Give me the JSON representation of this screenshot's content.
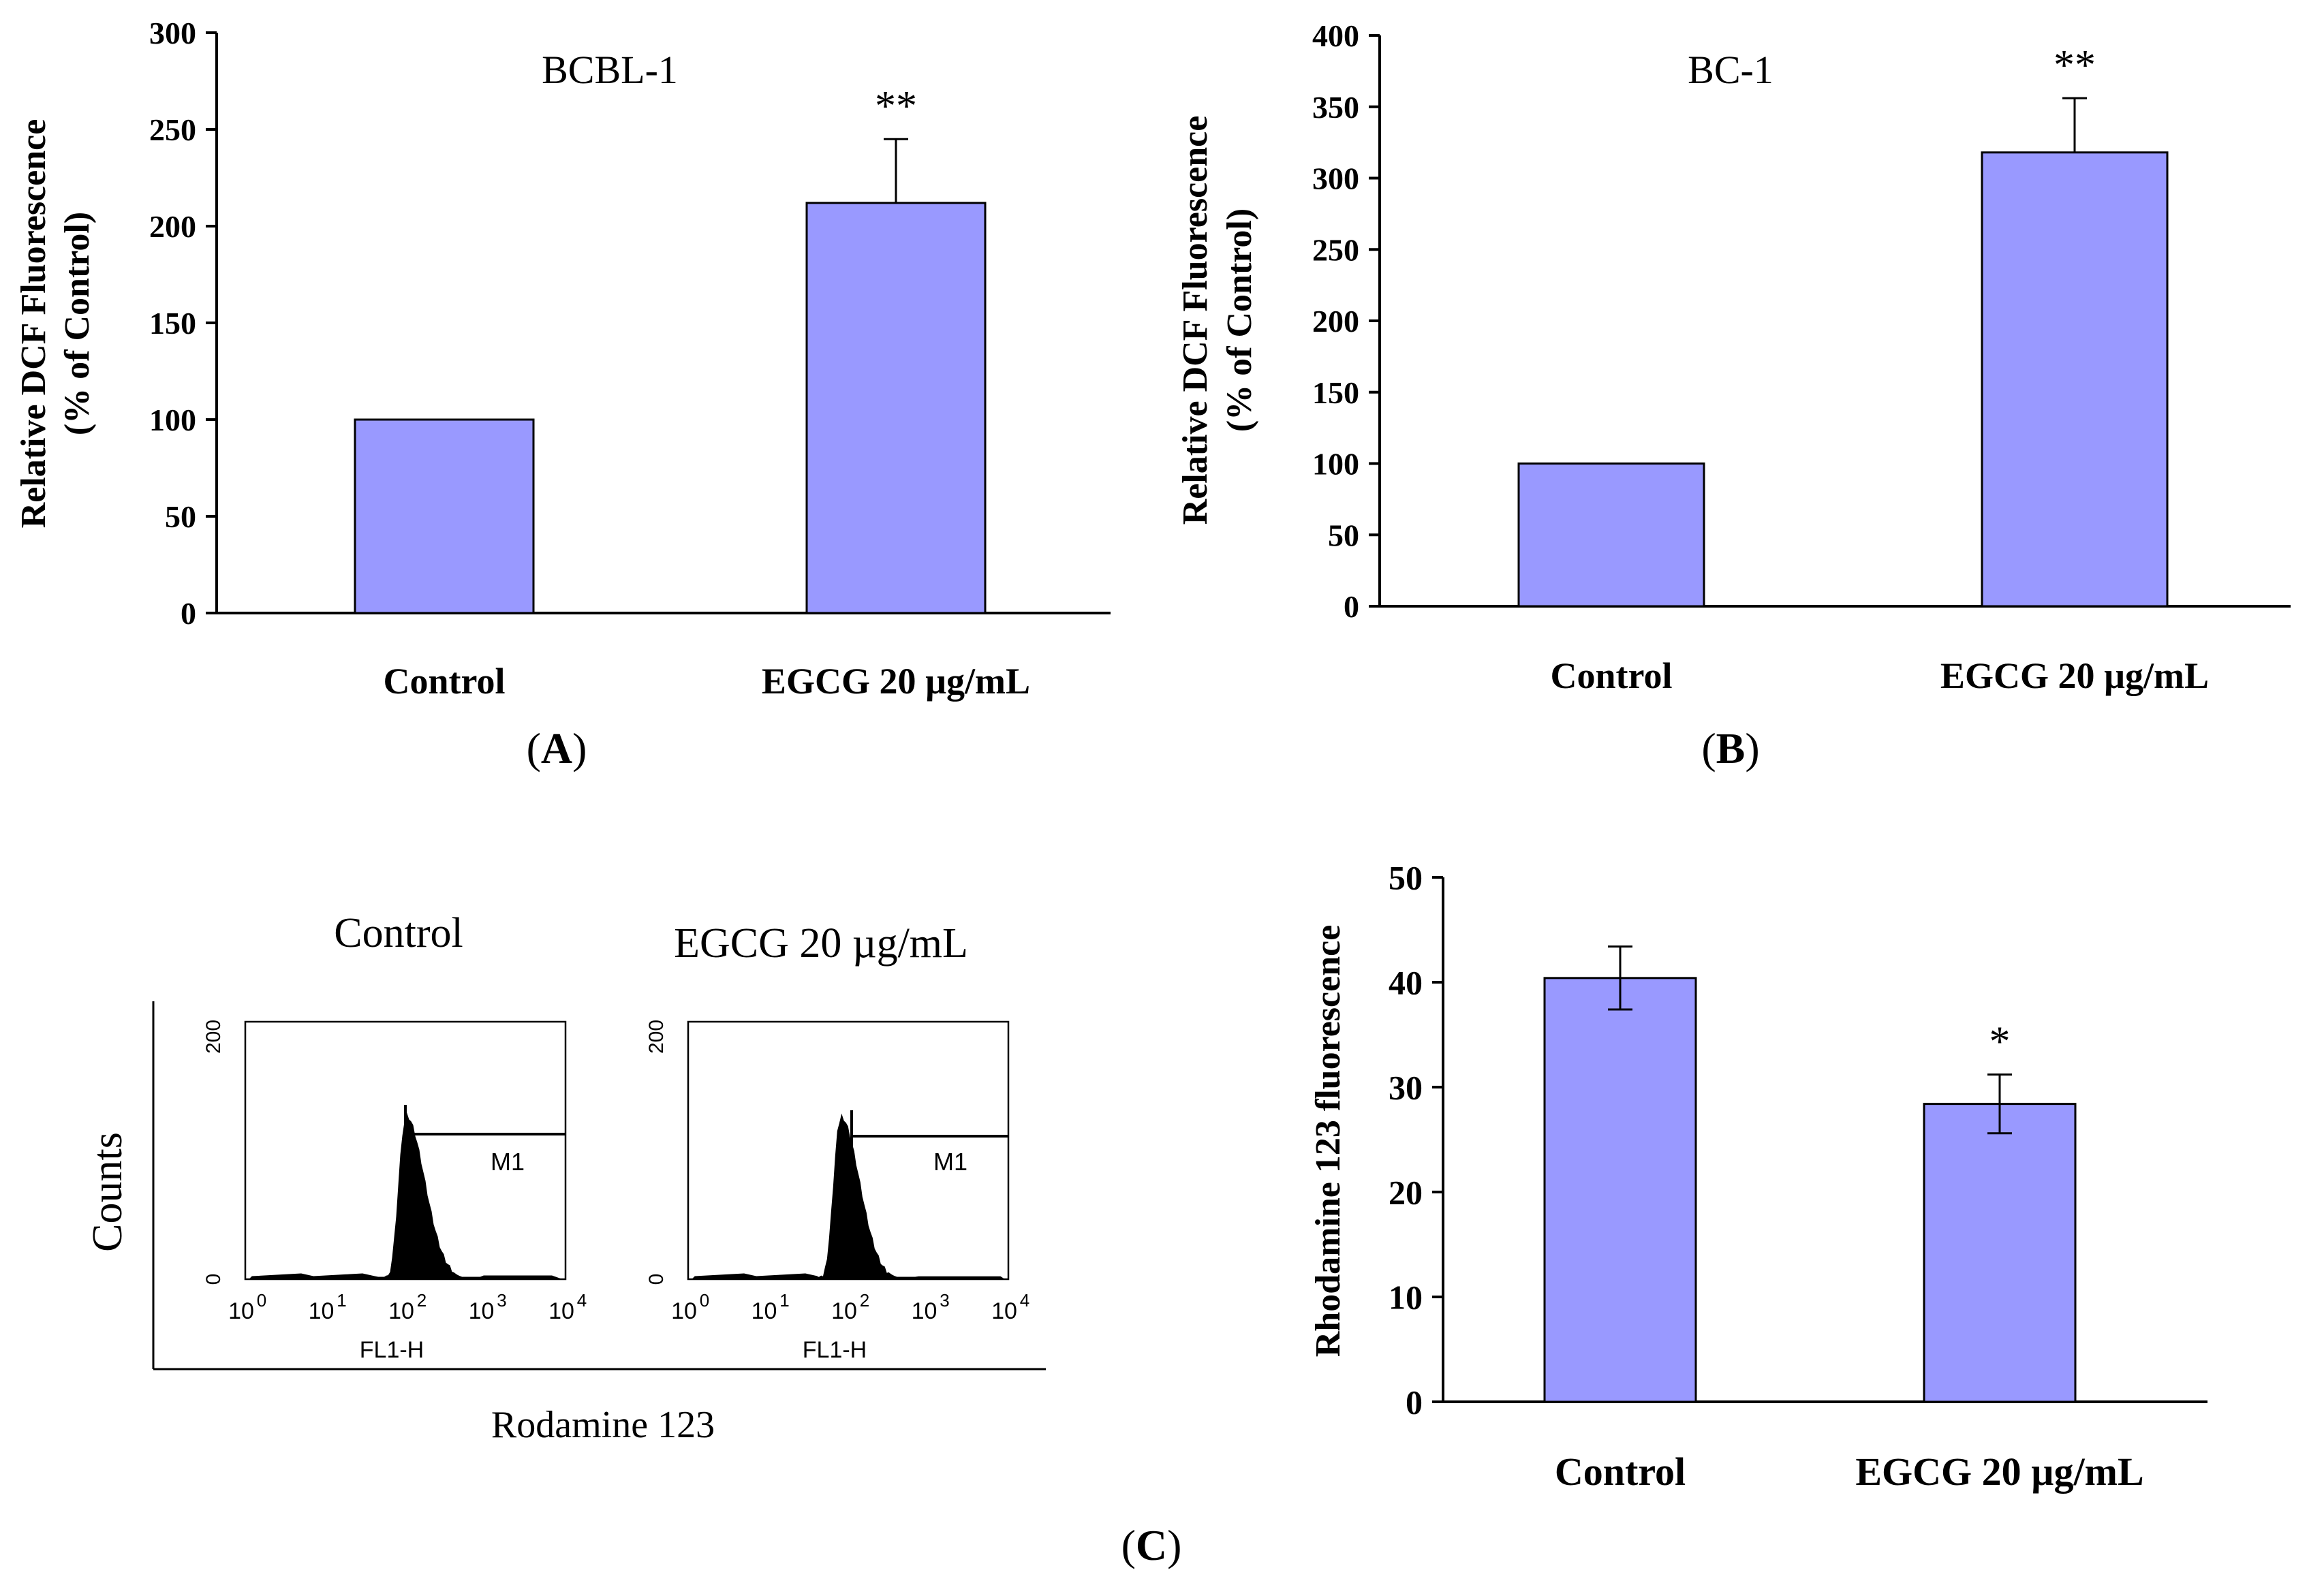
{
  "colors": {
    "bar": "#9999FF",
    "axis": "#000000",
    "text": "#000000",
    "background": "#FFFFFF"
  },
  "panels": {
    "a": {
      "label_open": "(",
      "label": "A",
      "label_close": ")"
    },
    "b": {
      "label_open": "(",
      "label": "B",
      "label_close": ")"
    },
    "c": {
      "label_open": "(",
      "label": "C",
      "label_close": ")"
    }
  },
  "flow": {
    "y_label": "Counts",
    "x_label": "Rodamine 123",
    "histograms": [
      {
        "title": "Control",
        "y_ticks": [
          "0",
          "200"
        ],
        "x_tick_base": "10",
        "x_tick_exps": [
          "0",
          "1",
          "2",
          "3",
          "4"
        ],
        "x_axis_label": "FL1-H",
        "marker_label": "M1",
        "peak_log_fl": 2.0
      },
      {
        "title": "EGCG 20 µg/mL",
        "y_ticks": [
          "0",
          "200"
        ],
        "x_tick_base": "10",
        "x_tick_exps": [
          "0",
          "1",
          "2",
          "3",
          "4"
        ],
        "x_axis_label": "FL1-H",
        "marker_label": "M1",
        "peak_log_fl": 1.9
      }
    ]
  },
  "chart_data": [
    {
      "id": "A",
      "type": "bar",
      "title": "BCBL-1",
      "categories": [
        "Control",
        "EGCG 20 µg/mL"
      ],
      "values": [
        100,
        212
      ],
      "errors": [
        0,
        33
      ],
      "annotations": [
        "",
        "**"
      ],
      "ylabel": [
        "Relative DCF Fluorescence",
        "(% of Control)"
      ],
      "xlabel": "",
      "ylim": [
        0,
        300
      ],
      "yticks": [
        0,
        50,
        100,
        150,
        200,
        250,
        300
      ],
      "grid": false
    },
    {
      "id": "B",
      "type": "bar",
      "title": "BC-1",
      "categories": [
        "Control",
        "EGCG 20 µg/mL"
      ],
      "values": [
        100,
        318
      ],
      "errors": [
        0,
        38
      ],
      "annotations": [
        "",
        "**"
      ],
      "ylabel": [
        "Relative DCF Fluorescence",
        "(% of Control)"
      ],
      "xlabel": "",
      "ylim": [
        0,
        400
      ],
      "yticks": [
        0,
        50,
        100,
        150,
        200,
        250,
        300,
        350,
        400
      ],
      "grid": false
    },
    {
      "id": "C",
      "type": "bar",
      "title": "",
      "categories": [
        "Control",
        "EGCG 20 µg/mL"
      ],
      "values": [
        40.4,
        28.4
      ],
      "errors": [
        3.0,
        2.8
      ],
      "annotations": [
        "",
        "*"
      ],
      "ylabel": [
        "Rhodamine 123 fluorescence"
      ],
      "xlabel": "",
      "ylim": [
        0,
        50
      ],
      "yticks": [
        0,
        10,
        20,
        30,
        40,
        50
      ],
      "grid": false
    }
  ]
}
